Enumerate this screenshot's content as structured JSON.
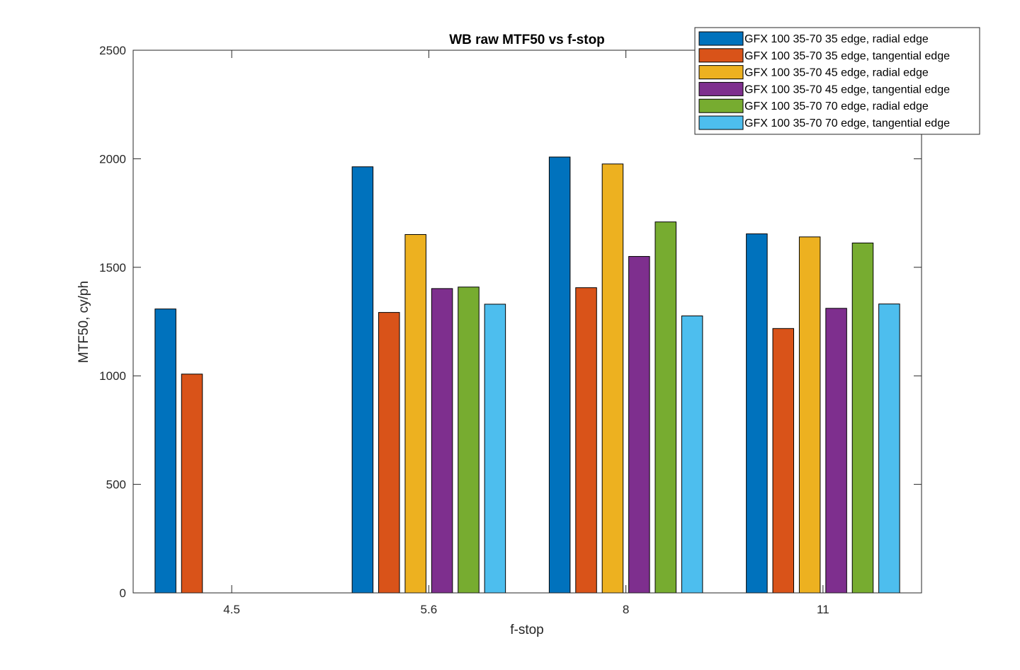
{
  "chart_data": {
    "type": "bar",
    "title": "WB raw MTF50 vs f-stop",
    "xlabel": "f-stop",
    "ylabel": "MTF50, cy/ph",
    "categories": [
      "4.5",
      "5.6",
      "8",
      "11"
    ],
    "ylim": [
      0,
      2500
    ],
    "yticks": [
      0,
      500,
      1000,
      1500,
      2000,
      2500
    ],
    "grid": false,
    "legend_position": "top-right",
    "series": [
      {
        "name": "GFX 100 35-70 35 edge, radial edge",
        "color": "#0072BD",
        "values": [
          1308,
          1963,
          2008,
          1654
        ]
      },
      {
        "name": "GFX 100 35-70 35 edge, tangential edge",
        "color": "#D95319",
        "values": [
          1008,
          1292,
          1406,
          1218
        ]
      },
      {
        "name": "GFX 100 35-70 45 edge, radial edge",
        "color": "#EDB120",
        "values": [
          null,
          1651,
          1976,
          1640
        ]
      },
      {
        "name": "GFX 100 35-70 45 edge, tangential edge",
        "color": "#7E2F8E",
        "values": [
          null,
          1402,
          1550,
          1311
        ]
      },
      {
        "name": "GFX 100 35-70 70 edge, radial edge",
        "color": "#77AC30",
        "values": [
          null,
          1409,
          1709,
          1612
        ]
      },
      {
        "name": "GFX 100 35-70 70 edge, tangential edge",
        "color": "#4DBEEE",
        "values": [
          null,
          1330,
          1276,
          1331
        ]
      }
    ]
  }
}
